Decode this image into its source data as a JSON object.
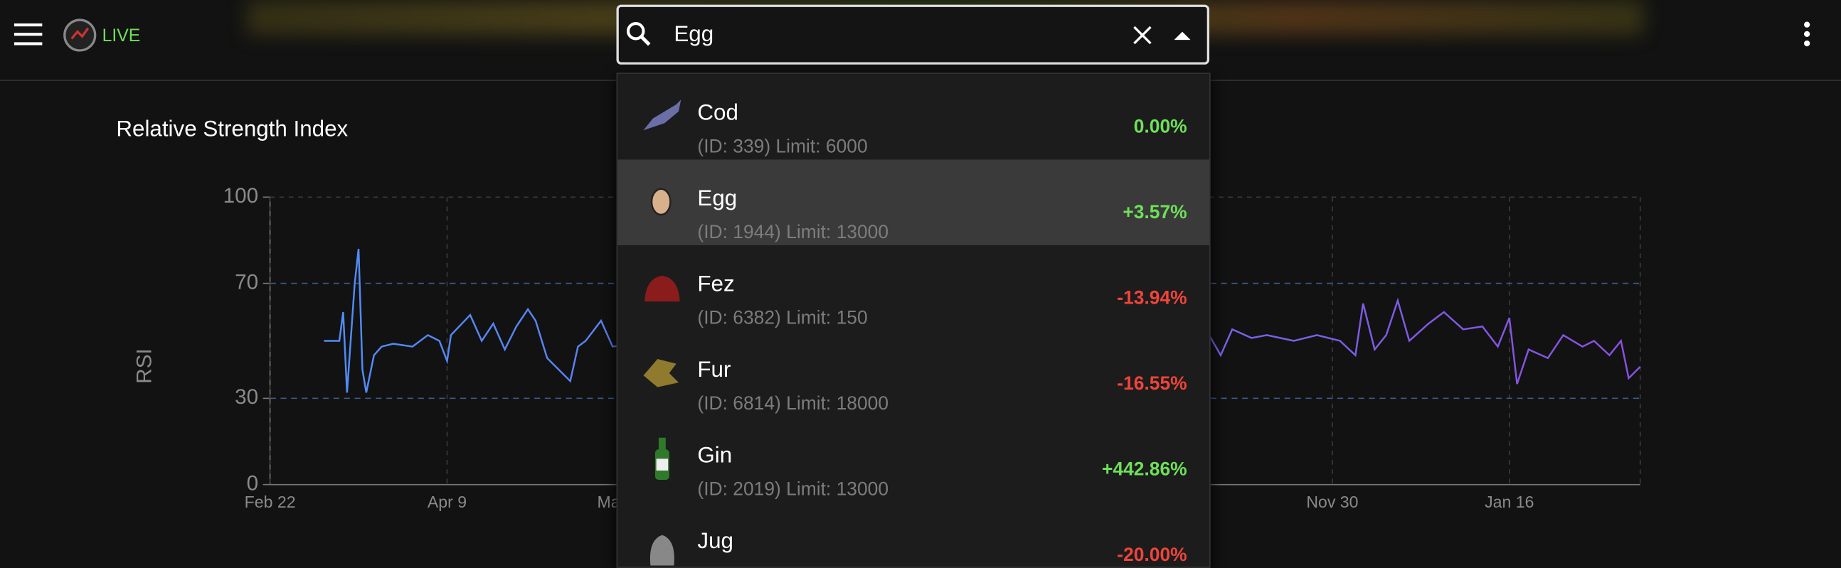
{
  "header": {
    "live_label": "LIVE"
  },
  "search": {
    "query": "Egg"
  },
  "dropdown": {
    "items": [
      {
        "name": "Cod",
        "detail": "(ID: 339) Limit: 6000",
        "change": "0.00%",
        "color": "#6ee05a"
      },
      {
        "name": "Egg",
        "detail": "(ID: 1944) Limit: 13000",
        "change": "+3.57%",
        "color": "#6ee05a"
      },
      {
        "name": "Fez",
        "detail": "(ID: 6382) Limit: 150",
        "change": "-13.94%",
        "color": "#f0443a"
      },
      {
        "name": "Fur",
        "detail": "(ID: 6814) Limit: 18000",
        "change": "-16.55%",
        "color": "#f0443a"
      },
      {
        "name": "Gin",
        "detail": "(ID: 2019) Limit: 13000",
        "change": "+442.86%",
        "color": "#6ee05a"
      },
      {
        "name": "Jug",
        "detail": "",
        "change": "-20.00%",
        "color": "#f0443a"
      }
    ]
  },
  "chart_data": {
    "type": "line",
    "title": "Relative Strength Index",
    "y_label": "RSI",
    "xlim": [
      0,
      356
    ],
    "ylim": [
      0,
      100
    ],
    "xticks": [
      {
        "value": 0,
        "label": "Feb 22"
      },
      {
        "value": 46,
        "label": "Apr 9"
      },
      {
        "value": 92,
        "label": "May 25"
      },
      {
        "value": 276,
        "label": "Nov 30"
      },
      {
        "value": 322,
        "label": "Jan 16"
      }
    ],
    "yticks": [
      0,
      30,
      70,
      100
    ],
    "threshold_lines": [
      30,
      70
    ],
    "grid": true,
    "series": [
      {
        "colors": [
          "#4f8ef7",
          "#8a4fe0"
        ],
        "x": [
          14,
          18,
          19,
          20,
          22,
          23,
          24,
          25,
          27,
          29,
          32,
          37,
          41,
          44,
          46,
          47,
          52,
          55,
          58,
          61,
          64,
          67,
          69,
          72,
          75,
          78,
          80,
          82,
          86,
          89,
          100,
          130,
          160,
          190,
          220,
          244,
          247,
          250,
          255,
          259,
          266,
          272,
          278,
          282,
          284,
          287,
          290,
          293,
          296,
          301,
          305,
          310,
          315,
          319,
          322,
          324,
          327,
          332,
          336,
          341,
          344,
          348,
          351,
          353,
          356
        ],
        "values": [
          50,
          50,
          60,
          32,
          70,
          82,
          40,
          32,
          45,
          48,
          49,
          48,
          52,
          50,
          43,
          52,
          59,
          50,
          56,
          47,
          55,
          61,
          57,
          44,
          40,
          36,
          48,
          50,
          57,
          48,
          50,
          52,
          48,
          51,
          49,
          52,
          45,
          54,
          51,
          52,
          50,
          52,
          50,
          45,
          63,
          47,
          52,
          64,
          50,
          56,
          60,
          54,
          55,
          48,
          58,
          35,
          47,
          44,
          52,
          48,
          50,
          45,
          50,
          37,
          41
        ]
      }
    ]
  }
}
